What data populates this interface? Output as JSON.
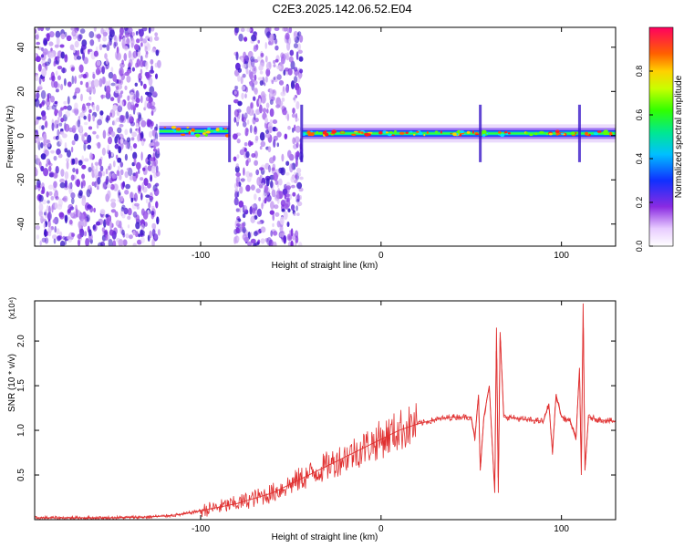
{
  "page": {
    "title": "C2E3.2025.142.06.52.E04"
  },
  "chart_data": [
    {
      "type": "heatmap",
      "name": "spectrogram",
      "xlabel": "Height of straight line (km)",
      "ylabel": "Frequency (Hz)",
      "xlim": [
        -192,
        130
      ],
      "ylim": [
        -50,
        49
      ],
      "xticks": [
        -100,
        0,
        100
      ],
      "yticks": [
        -40,
        -20,
        0,
        20,
        40
      ],
      "colorbar": {
        "label": "Normalized spectral amplitude",
        "range": [
          0.0,
          1.0
        ],
        "ticks": [
          0.0,
          0.2,
          0.4,
          0.6,
          0.8
        ]
      },
      "regions": [
        {
          "x": [
            -192,
            -123
          ],
          "kind": "broadband noise",
          "level": 0.2
        },
        {
          "x": [
            -123,
            -84
          ],
          "kind": "narrow band near 0 Hz",
          "center_hz": 2,
          "level": 0.45
        },
        {
          "x": [
            -81,
            -44
          ],
          "kind": "broadband noise",
          "level": 0.2
        },
        {
          "x": [
            -44,
            130
          ],
          "kind": "narrow band near 0 Hz",
          "center_hz": 1,
          "level": 0.55
        }
      ]
    },
    {
      "type": "line",
      "name": "snr",
      "xlabel": "Height of straight line (km)",
      "ylabel": "SNR (10 * v/v)",
      "y_multiplier": "(x10⁴)",
      "xlim": [
        -192,
        130
      ],
      "ylim": [
        0,
        2.45
      ],
      "xticks": [
        -100,
        0,
        100
      ],
      "yticks": [
        0.5,
        1.0,
        1.5,
        2.0
      ],
      "color": "#e03030",
      "series": [
        {
          "x": [
            -192,
            -170,
            -150,
            -130,
            -120,
            -110,
            -100,
            -90,
            -80,
            -70,
            -60,
            -50,
            -40,
            -30,
            -20,
            -10,
            0,
            10,
            20,
            30,
            40,
            50,
            52,
            54,
            55,
            57,
            60,
            63,
            64,
            65,
            66,
            68,
            70,
            80,
            90,
            93,
            95,
            97,
            100,
            105,
            108,
            110,
            111,
            112,
            113,
            115,
            120,
            130
          ],
          "y": [
            0.02,
            0.02,
            0.02,
            0.03,
            0.04,
            0.06,
            0.1,
            0.14,
            0.18,
            0.24,
            0.3,
            0.4,
            0.5,
            0.6,
            0.7,
            0.8,
            0.9,
            1.0,
            1.07,
            1.12,
            1.15,
            1.15,
            0.9,
            1.4,
            0.55,
            1.15,
            1.5,
            0.3,
            2.15,
            0.3,
            2.1,
            1.15,
            1.15,
            1.12,
            1.1,
            1.3,
            0.75,
            1.4,
            1.15,
            1.1,
            0.9,
            1.7,
            0.5,
            2.42,
            0.55,
            1.15,
            1.12,
            1.1
          ]
        }
      ]
    }
  ]
}
